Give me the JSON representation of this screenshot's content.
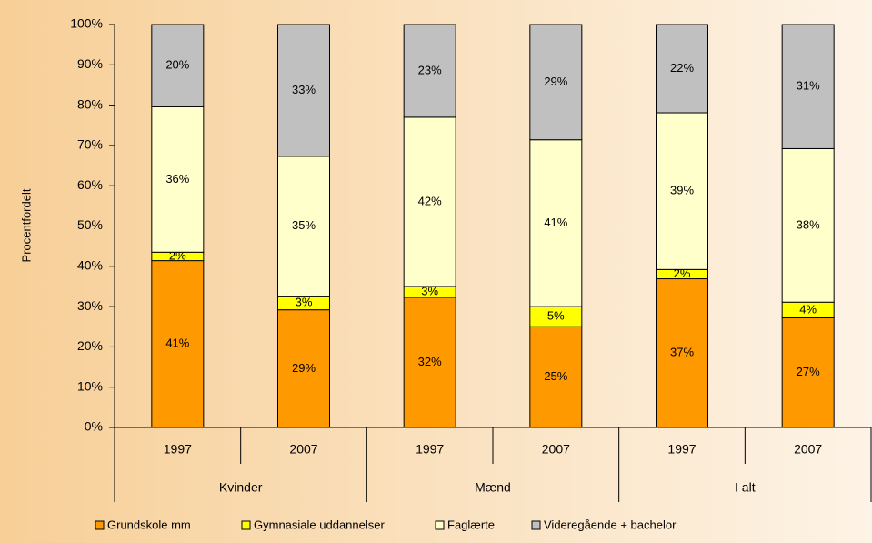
{
  "chart_data": {
    "type": "stacked_bar",
    "ylabel": "Procentfordelt",
    "categories": [
      "1997",
      "2007",
      "1997",
      "2007",
      "1997",
      "2007"
    ],
    "groups": [
      "Kvinder",
      "Mænd",
      "I alt"
    ],
    "ylim": [
      0,
      100
    ],
    "yticks": [
      {
        "value": 0,
        "label": "0%"
      },
      {
        "value": 10,
        "label": "10%"
      },
      {
        "value": 20,
        "label": "20%"
      },
      {
        "value": 30,
        "label": "30%"
      },
      {
        "value": 40,
        "label": "40%"
      },
      {
        "value": 50,
        "label": "50%"
      },
      {
        "value": 60,
        "label": "60%"
      },
      {
        "value": 70,
        "label": "70%"
      },
      {
        "value": 80,
        "label": "80%"
      },
      {
        "value": 90,
        "label": "90%"
      },
      {
        "value": 100,
        "label": "100%"
      }
    ],
    "legend": "bottom",
    "series": [
      {
        "name": "Grundskole mm",
        "color": "#ff9900",
        "values": [
          41.4,
          29.2,
          32.3,
          25.0,
          36.9,
          27.2
        ],
        "value_labels": [
          "41%",
          "29%",
          "32%",
          "25%",
          "37%",
          "27%"
        ]
      },
      {
        "name": "Gymnasiale uddannelser",
        "color": "#ffff00",
        "values": [
          2.1,
          3.4,
          2.7,
          5.0,
          2.3,
          3.9
        ],
        "value_labels": [
          "2%",
          "3%",
          "3%",
          "5%",
          "2%",
          "4%"
        ]
      },
      {
        "name": "Faglærte",
        "color": "#ffffcc",
        "values": [
          36.1,
          34.7,
          42.0,
          41.4,
          38.9,
          38.1
        ],
        "value_labels": [
          "36%",
          "35%",
          "42%",
          "41%",
          "39%",
          "38%"
        ]
      },
      {
        "name": "Videregående + bachelor",
        "color": "#c0c0c0",
        "values": [
          20.4,
          32.7,
          23.0,
          28.6,
          21.9,
          30.8
        ],
        "value_labels": [
          "20%",
          "33%",
          "23%",
          "29%",
          "22%",
          "31%"
        ]
      }
    ]
  }
}
